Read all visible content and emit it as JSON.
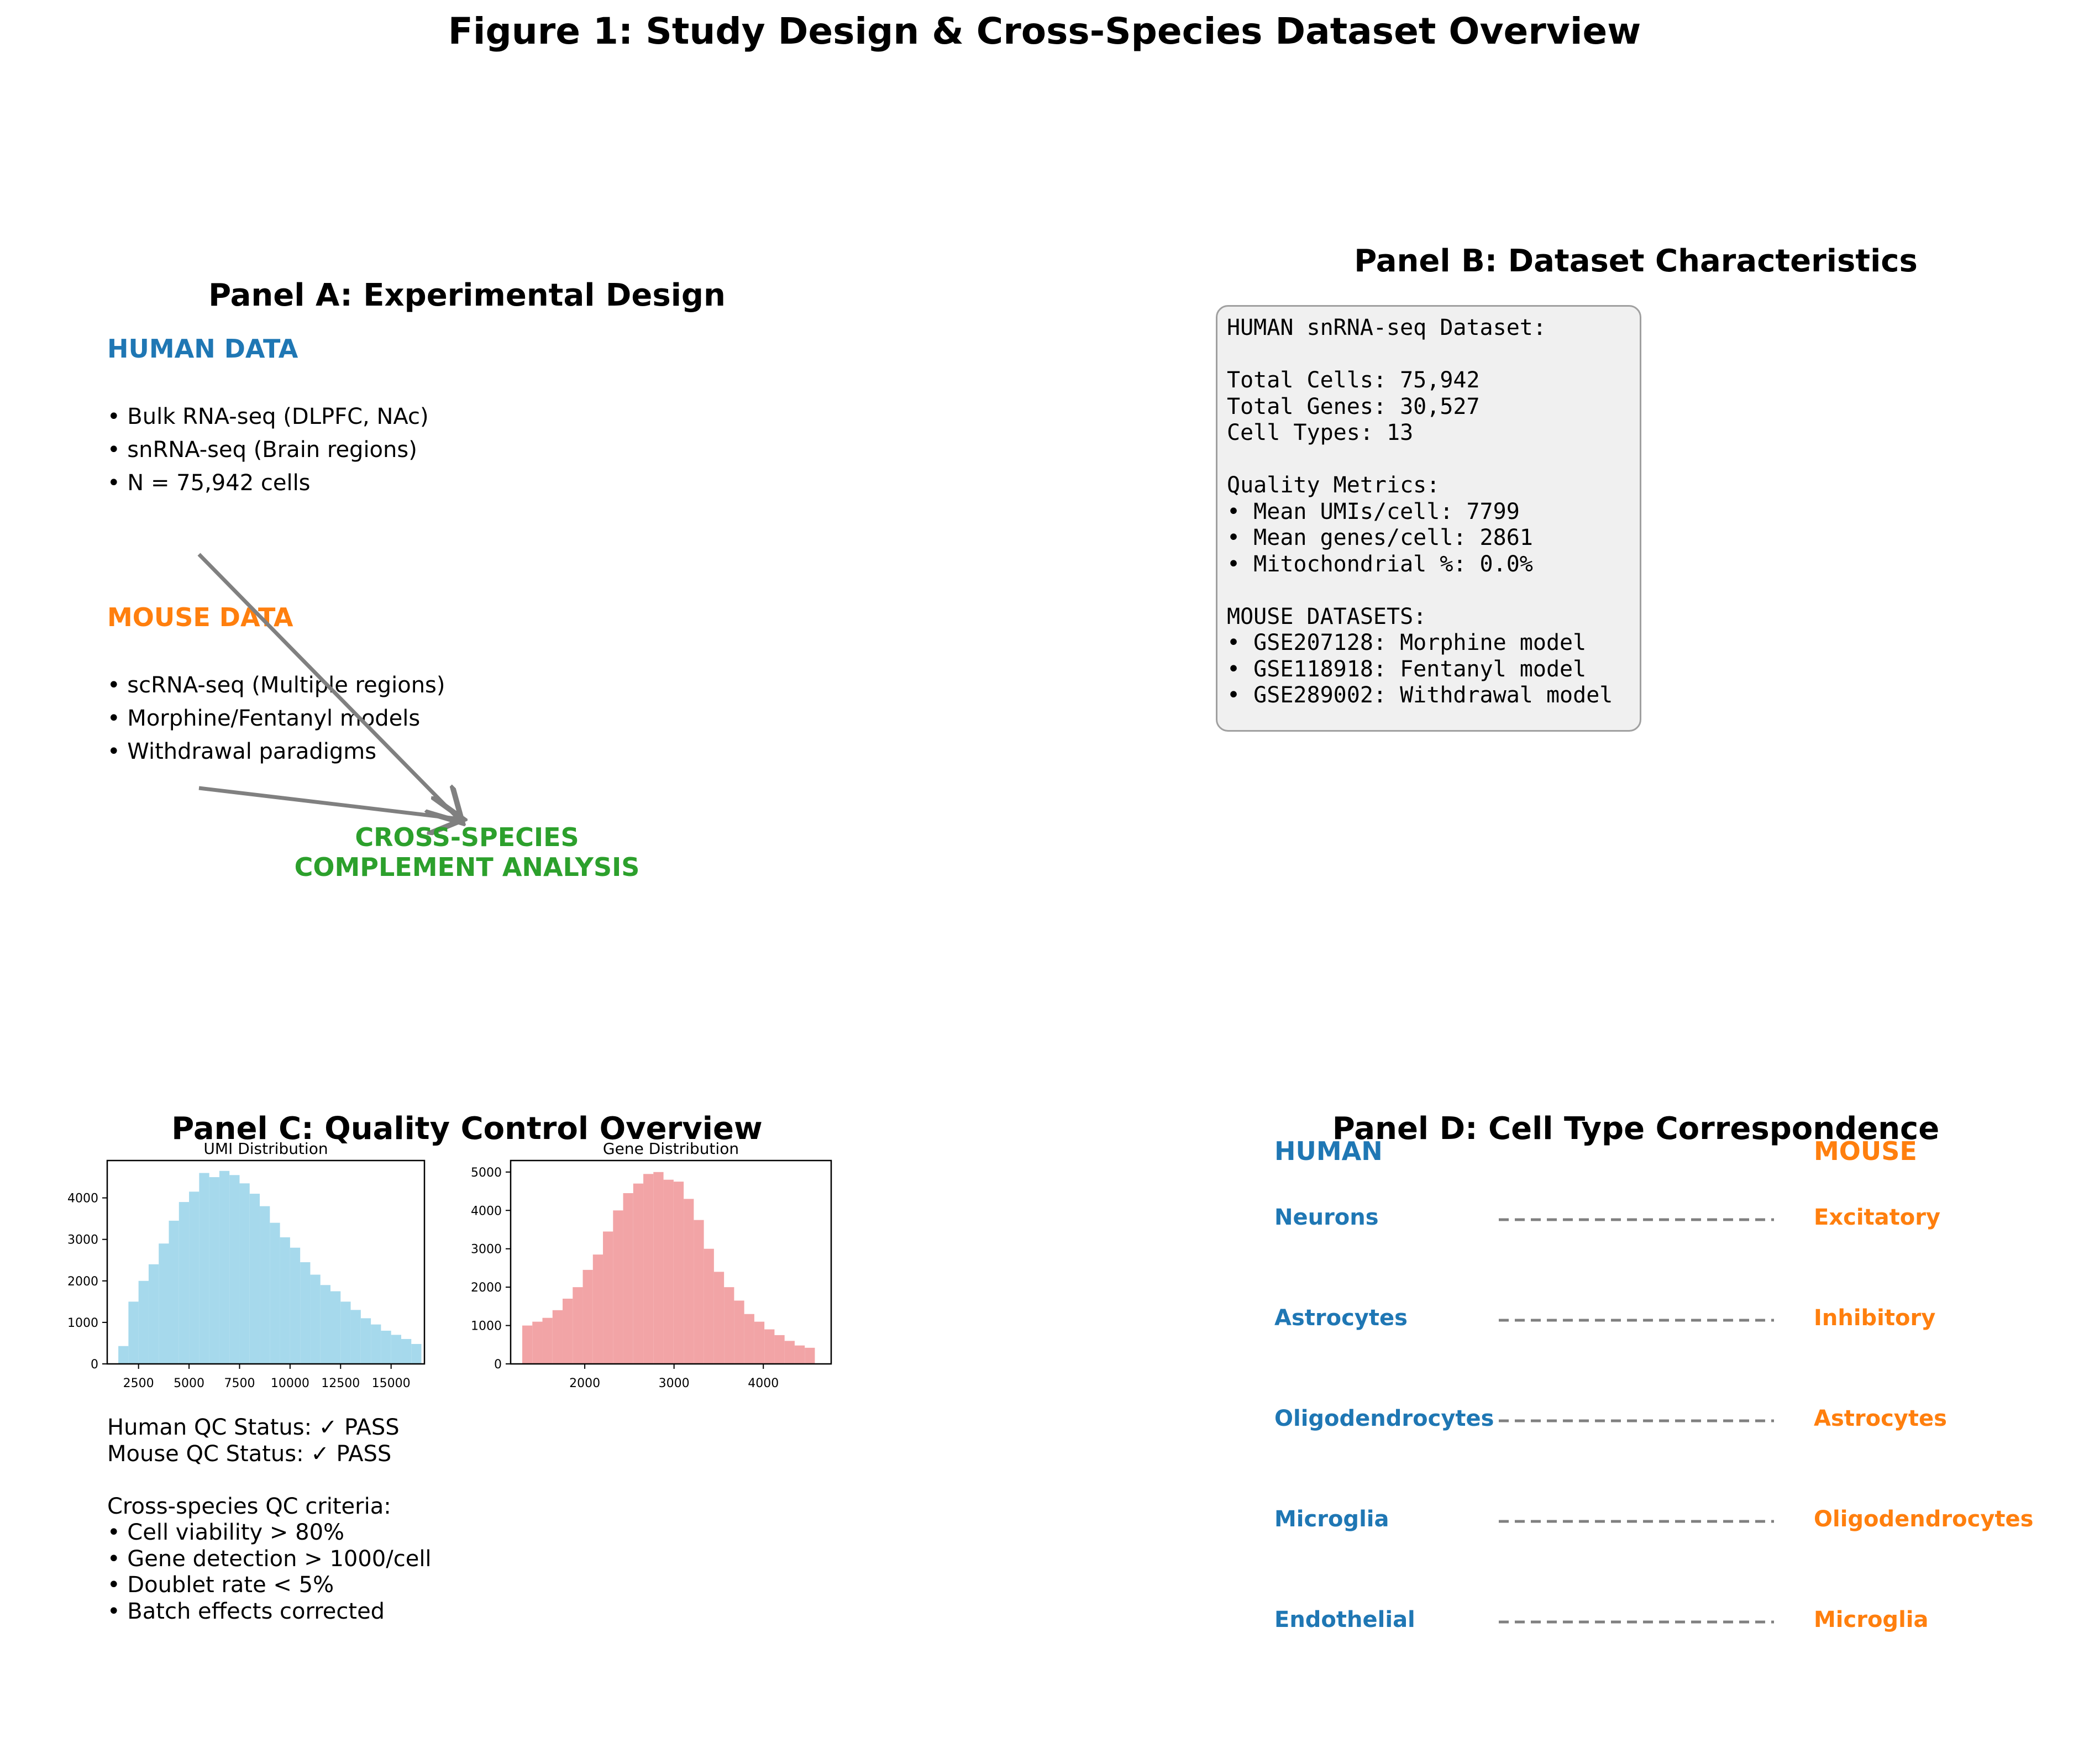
{
  "figure_title": "Figure 1: Study Design & Cross-Species Dataset Overview",
  "colors": {
    "human": "#1f77b4",
    "mouse": "#ff7f0e",
    "cross": "#2ca02c",
    "arrow": "#808080",
    "umi_hist": "#a6d9ec",
    "gene_hist": "#f2a4a6"
  },
  "panel_a": {
    "title": "Panel A: Experimental Design",
    "human_heading": "HUMAN DATA",
    "human_items": [
      "• Bulk RNA-seq (DLPFC, NAc)",
      "• snRNA-seq (Brain regions)",
      "• N = 75,942 cells"
    ],
    "mouse_heading": "MOUSE DATA",
    "mouse_items": [
      "• scRNA-seq (Multiple regions)",
      "• Morphine/Fentanyl models",
      "• Withdrawal paradigms"
    ],
    "cross_line1": "CROSS-SPECIES",
    "cross_line2": "COMPLEMENT ANALYSIS"
  },
  "panel_b": {
    "title": "Panel B: Dataset Characteristics",
    "box_text": "HUMAN snRNA-seq Dataset:\n\nTotal Cells: 75,942\nTotal Genes: 30,527\nCell Types: 13\n\nQuality Metrics:\n• Mean UMIs/cell: 7799\n• Mean genes/cell: 2861\n• Mitochondrial %: 0.0%\n\nMOUSE DATASETS:\n• GSE207128: Morphine model\n• GSE118918: Fentanyl model\n• GSE289002: Withdrawal model"
  },
  "panel_c": {
    "title": "Panel C: Quality Control Overview",
    "qc_text": "Human QC Status: ✓ PASS\nMouse QC Status: ✓ PASS\n\nCross-species QC criteria:\n• Cell viability > 80%\n• Gene detection > 1000/cell\n• Doublet rate < 5%\n• Batch effects corrected"
  },
  "panel_d": {
    "title": "Panel D: Cell Type Correspondence",
    "human_header": "HUMAN",
    "mouse_header": "MOUSE",
    "pairs": [
      {
        "human": "Neurons",
        "mouse": "Excitatory"
      },
      {
        "human": "Astrocytes",
        "mouse": "Inhibitory"
      },
      {
        "human": "Oligodendrocytes",
        "mouse": "Astrocytes"
      },
      {
        "human": "Microglia",
        "mouse": "Oligodendrocytes"
      },
      {
        "human": "Endothelial",
        "mouse": "Microglia"
      }
    ]
  },
  "chart_data": [
    {
      "type": "bar",
      "title": "UMI Distribution",
      "bin_start": 1500,
      "bin_width": 500,
      "values": [
        430,
        1500,
        2000,
        2400,
        2900,
        3450,
        3900,
        4150,
        4600,
        4500,
        4650,
        4550,
        4350,
        4100,
        3800,
        3400,
        3050,
        2800,
        2450,
        2150,
        1900,
        1750,
        1500,
        1300,
        1100,
        950,
        800,
        700,
        600,
        480
      ],
      "xlim": [
        950,
        16650
      ],
      "ylim": [
        0,
        4900
      ],
      "xticks": [
        2500,
        5000,
        7500,
        10000,
        12500,
        15000
      ],
      "yticks": [
        0,
        1000,
        2000,
        3000,
        4000
      ]
    },
    {
      "type": "bar",
      "title": "Gene Distribution",
      "bin_start": 1300,
      "bin_width": 113,
      "values": [
        1000,
        1100,
        1200,
        1400,
        1700,
        2000,
        2450,
        2850,
        3450,
        4000,
        4450,
        4700,
        4950,
        5000,
        4800,
        4750,
        4300,
        3750,
        3000,
        2400,
        2000,
        1650,
        1300,
        1100,
        900,
        750,
        600,
        480,
        420
      ],
      "xlim": [
        1170,
        4760
      ],
      "ylim": [
        0,
        5300
      ],
      "xticks": [
        2000,
        3000,
        4000
      ],
      "yticks": [
        0,
        1000,
        2000,
        3000,
        4000,
        5000
      ]
    }
  ]
}
